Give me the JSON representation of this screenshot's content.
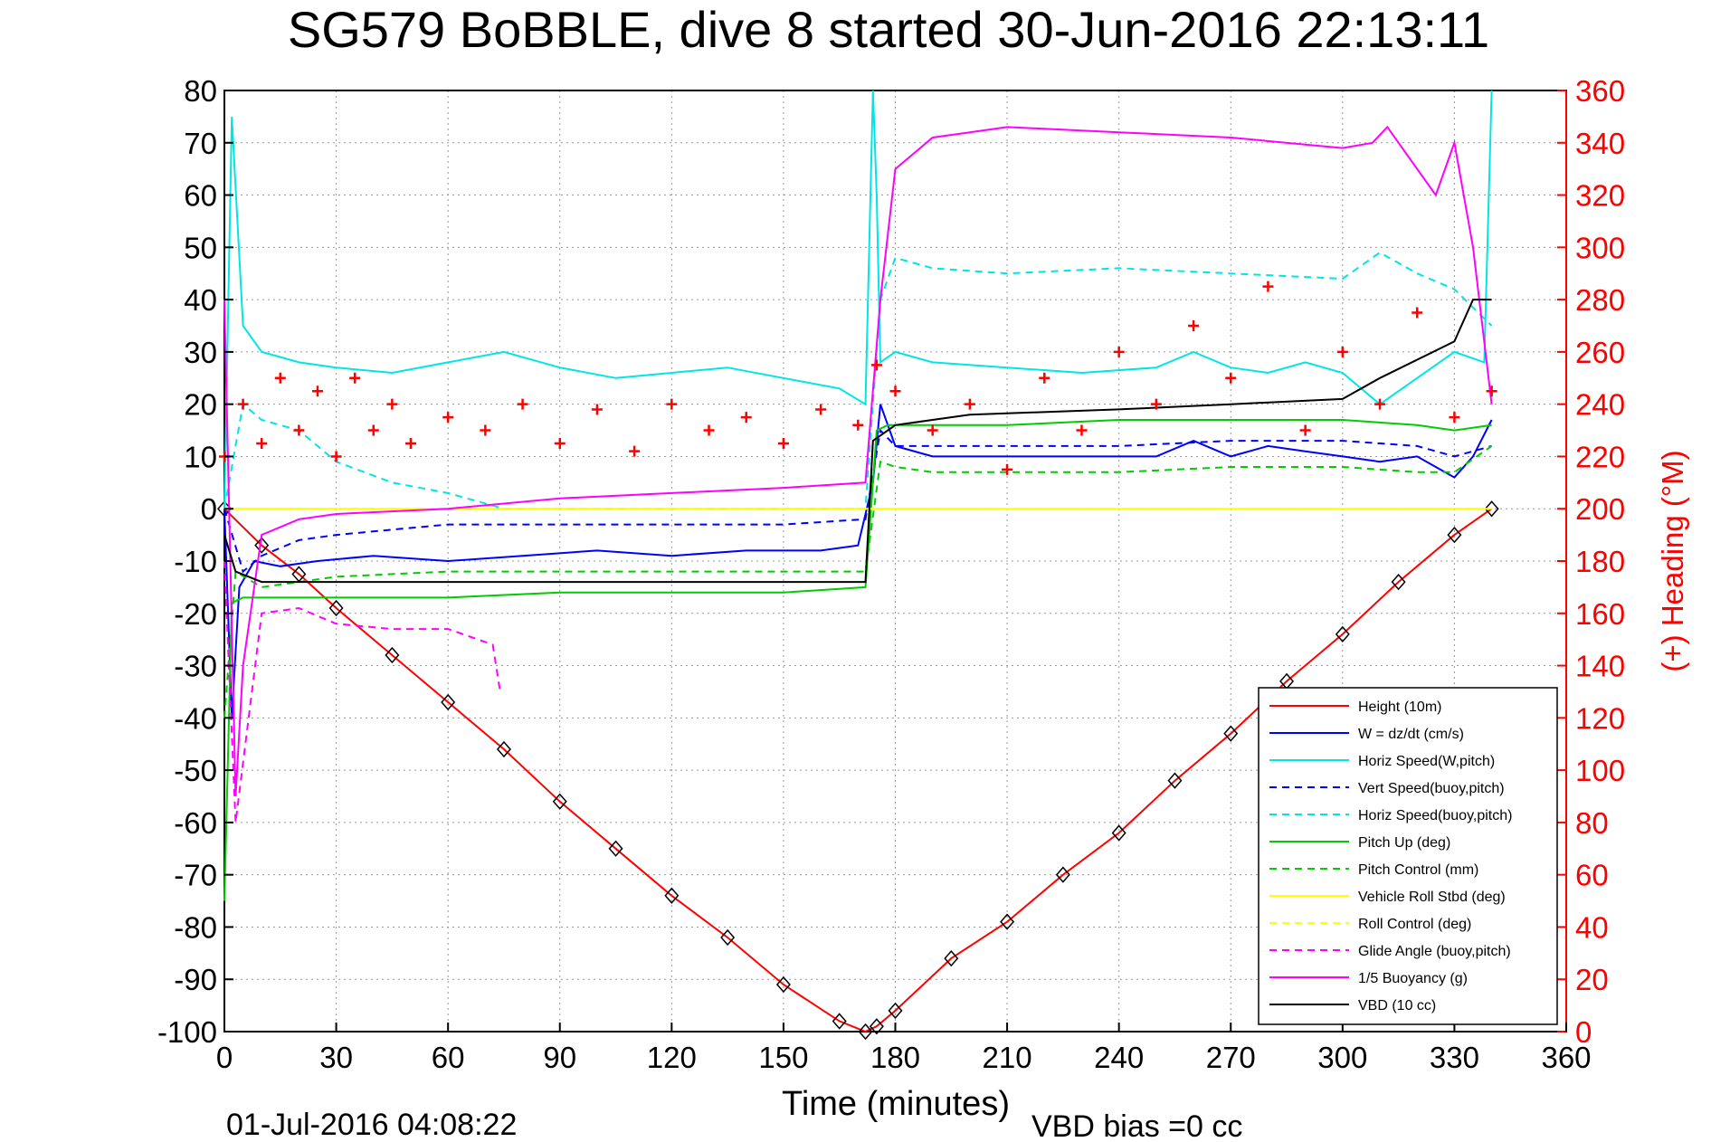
{
  "chart_data": {
    "type": "line",
    "title": "SG579 BoBBLE, dive 8 started 30-Jun-2016 22:13:11",
    "xlabel": "Time (minutes)",
    "ylabel": "",
    "ylabel_right": "(+) Heading (°M)",
    "xlim": [
      0,
      360
    ],
    "ylim": [
      -100,
      80
    ],
    "ylim_right": [
      0,
      360
    ],
    "x_ticks": [
      "0",
      "30",
      "60",
      "90",
      "120",
      "150",
      "180",
      "210",
      "240",
      "270",
      "300",
      "330",
      "360"
    ],
    "y_ticks": [
      "80",
      "70",
      "60",
      "50",
      "40",
      "30",
      "20",
      "10",
      "0",
      "-10",
      "-20",
      "-30",
      "-40",
      "-50",
      "-60",
      "-70",
      "-80",
      "-90",
      "-100"
    ],
    "y_right_ticks": [
      "360",
      "340",
      "320",
      "300",
      "280",
      "260",
      "240",
      "220",
      "200",
      "180",
      "160",
      "140",
      "120",
      "100",
      "80",
      "60",
      "40",
      "20",
      "0"
    ],
    "grid": true,
    "legend_position": "bottom-right",
    "footer_left": "01-Jul-2016 04:08:22",
    "footer_right": "VBD bias =0 cc",
    "series": [
      {
        "name": "Height (10m)",
        "color": "#ff0000",
        "style": "solid",
        "x": [
          0,
          10,
          20,
          30,
          45,
          60,
          75,
          90,
          105,
          120,
          135,
          150,
          165,
          172,
          175,
          180,
          195,
          210,
          225,
          240,
          255,
          270,
          285,
          300,
          315,
          330,
          340
        ],
        "values": [
          0,
          -7,
          -12.5,
          -19,
          -28,
          -37,
          -46,
          -56,
          -65,
          -74,
          -82,
          -91,
          -98,
          -100,
          -99,
          -96,
          -86,
          -79,
          -70,
          -62,
          -52,
          -43,
          -33,
          -24,
          -14,
          -5,
          0
        ]
      },
      {
        "name": "W = dz/dt (cm/s)",
        "color": "#0000ff",
        "style": "solid",
        "x": [
          0,
          2,
          4,
          8,
          15,
          25,
          40,
          60,
          80,
          100,
          120,
          140,
          160,
          170,
          174,
          176,
          180,
          190,
          210,
          230,
          250,
          260,
          270,
          280,
          290,
          300,
          310,
          320,
          330,
          335,
          340
        ],
        "values": [
          0,
          -40,
          -15,
          -10,
          -11,
          -10,
          -9,
          -10,
          -9,
          -8,
          -9,
          -8,
          -8,
          -7,
          5,
          20,
          12,
          10,
          10,
          10,
          10,
          13,
          10,
          12,
          11,
          10,
          9,
          10,
          6,
          10,
          17
        ]
      },
      {
        "name": "Horiz Speed(W,pitch)",
        "color": "#00e5e5",
        "style": "solid",
        "x": [
          0,
          2,
          5,
          10,
          20,
          30,
          45,
          60,
          75,
          90,
          105,
          120,
          135,
          150,
          165,
          172,
          174,
          175,
          176,
          180,
          190,
          210,
          230,
          250,
          260,
          270,
          280,
          290,
          300,
          310,
          320,
          330,
          338,
          340
        ],
        "values": [
          0,
          75,
          35,
          30,
          28,
          27,
          26,
          28,
          30,
          27,
          25,
          26,
          27,
          25,
          23,
          20,
          80,
          60,
          28,
          30,
          28,
          27,
          26,
          27,
          30,
          27,
          26,
          28,
          26,
          20,
          25,
          30,
          28,
          80
        ]
      },
      {
        "name": "Vert Speed(buoy,pitch)",
        "color": "#0000ff",
        "style": "dashed",
        "x": [
          0,
          5,
          10,
          20,
          30,
          45,
          60,
          75,
          90,
          120,
          150,
          172,
          176,
          180,
          210,
          240,
          270,
          300,
          320,
          330,
          340
        ],
        "values": [
          0,
          -12,
          -9,
          -6,
          -5,
          -4,
          -3,
          -3,
          -3,
          -3,
          -3,
          -2,
          15,
          12,
          12,
          12,
          13,
          13,
          12,
          10,
          12
        ]
      },
      {
        "name": "Horiz Speed(buoy,pitch)",
        "color": "#00e5e5",
        "style": "dashed",
        "x": [
          0,
          5,
          10,
          20,
          30,
          45,
          60,
          75,
          90,
          120,
          150,
          172,
          176,
          180,
          190,
          210,
          240,
          270,
          300,
          310,
          320,
          330,
          340
        ],
        "values": [
          0,
          20,
          17,
          15,
          9,
          5,
          3,
          0,
          0,
          0,
          0,
          0,
          40,
          48,
          46,
          45,
          46,
          45,
          44,
          49,
          45,
          42,
          35
        ]
      },
      {
        "name": "Pitch Up (deg)",
        "color": "#00cc00",
        "style": "solid",
        "x": [
          0,
          2,
          5,
          10,
          20,
          30,
          45,
          60,
          90,
          120,
          150,
          172,
          175,
          178,
          180,
          190,
          210,
          240,
          270,
          300,
          320,
          330,
          340
        ],
        "values": [
          -75,
          -18,
          -17,
          -17,
          -17,
          -17,
          -17,
          -17,
          -16,
          -16,
          -16,
          -15,
          15,
          16,
          16,
          16,
          16,
          17,
          17,
          17,
          16,
          15,
          16
        ]
      },
      {
        "name": "Pitch Control (mm)",
        "color": "#00cc00",
        "style": "dashed",
        "x": [
          0,
          3,
          10,
          30,
          60,
          90,
          120,
          150,
          172,
          176,
          180,
          190,
          210,
          240,
          270,
          300,
          320,
          330,
          340
        ],
        "values": [
          -40,
          -12,
          -15,
          -13,
          -12,
          -12,
          -12,
          -12,
          -12,
          9,
          8,
          7,
          7,
          7,
          8,
          8,
          7,
          7,
          12
        ]
      },
      {
        "name": "Vehicle Roll Stbd (deg)",
        "color": "#ffff00",
        "style": "solid",
        "x": [
          0,
          10,
          20,
          30,
          60,
          90,
          120,
          150,
          172,
          180,
          210,
          240,
          270,
          300,
          330,
          340
        ],
        "values": [
          0,
          0,
          0,
          0,
          0,
          0,
          0,
          0,
          0,
          0,
          0,
          0,
          0,
          0,
          0,
          0
        ]
      },
      {
        "name": "Roll Control (deg)",
        "color": "#ffff00",
        "style": "dashed",
        "x": [
          0,
          10,
          20,
          30,
          60,
          90,
          120,
          150,
          172,
          180,
          210,
          240,
          270,
          300,
          330,
          340
        ],
        "values": [
          0,
          0,
          0,
          0,
          0,
          0,
          0,
          0,
          0,
          0,
          0,
          0,
          0,
          0,
          0,
          0
        ]
      },
      {
        "name": "Glide Angle (buoy,pitch)",
        "color": "#ff00ff",
        "style": "dashed",
        "x": [
          0,
          3,
          10,
          20,
          30,
          45,
          60,
          72,
          74
        ],
        "values": [
          -10,
          -60,
          -20,
          -19,
          -22,
          -23,
          -23,
          -26,
          -35
        ]
      },
      {
        "name": "1/5 Buoyancy (g)",
        "color": "#ff00ff",
        "style": "solid",
        "x": [
          0,
          3,
          5,
          10,
          20,
          30,
          60,
          90,
          120,
          150,
          172,
          176,
          180,
          190,
          200,
          210,
          240,
          270,
          300,
          308,
          312,
          325,
          330,
          335,
          340
        ],
        "values": [
          40,
          -55,
          -30,
          -5,
          -2,
          -1,
          0,
          2,
          3,
          4,
          5,
          40,
          65,
          71,
          72,
          73,
          72,
          71,
          69,
          70,
          73,
          60,
          70,
          50,
          20
        ]
      },
      {
        "name": "VBD (10 cc)",
        "color": "#000000",
        "style": "solid",
        "x": [
          0,
          3,
          10,
          30,
          60,
          90,
          120,
          150,
          172,
          174,
          180,
          190,
          200,
          240,
          270,
          300,
          310,
          330,
          335,
          340
        ],
        "values": [
          -5,
          -12,
          -14,
          -14,
          -14,
          -14,
          -14,
          -14,
          -14,
          13,
          16,
          17,
          18,
          19,
          20,
          21,
          25,
          32,
          40,
          40
        ]
      },
      {
        "name": "Heading",
        "color": "#ff0000",
        "style": "markers-plus",
        "axis": "right",
        "x": [
          0,
          5,
          10,
          15,
          20,
          25,
          30,
          35,
          40,
          45,
          50,
          60,
          70,
          80,
          90,
          100,
          110,
          120,
          130,
          140,
          150,
          160,
          170,
          175,
          180,
          190,
          200,
          210,
          220,
          230,
          240,
          250,
          260,
          270,
          280,
          290,
          300,
          310,
          320,
          330,
          340
        ],
        "values": [
          220,
          240,
          225,
          250,
          230,
          245,
          220,
          250,
          230,
          240,
          225,
          235,
          230,
          240,
          225,
          238,
          222,
          240,
          230,
          235,
          225,
          238,
          232,
          255,
          245,
          230,
          240,
          215,
          250,
          230,
          260,
          240,
          270,
          250,
          285,
          230,
          260,
          240,
          275,
          235,
          245
        ]
      }
    ]
  }
}
